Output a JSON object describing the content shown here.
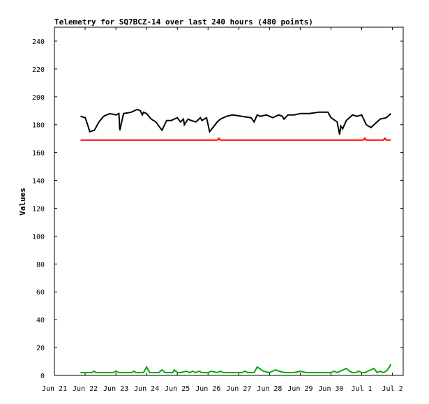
{
  "chart_data": {
    "type": "line",
    "title": "Telemetry for SQ7BCZ-14 over last 240 hours (480 points)",
    "xlabel": "",
    "ylabel": "Values",
    "ylim": [
      0,
      250
    ],
    "y_ticks": [
      0,
      20,
      40,
      60,
      80,
      100,
      120,
      140,
      160,
      180,
      200,
      220,
      240
    ],
    "x_ticks": [
      {
        "day": 0,
        "label": "Jun 21"
      },
      {
        "day": 1,
        "label": "Jun 22"
      },
      {
        "day": 2,
        "label": "Jun 23"
      },
      {
        "day": 3,
        "label": "Jun 24"
      },
      {
        "day": 4,
        "label": "Jun 25"
      },
      {
        "day": 5,
        "label": "Jun 26"
      },
      {
        "day": 6,
        "label": "Jun 27"
      },
      {
        "day": 7,
        "label": "Jun 28"
      },
      {
        "day": 8,
        "label": "Jun 29"
      },
      {
        "day": 9,
        "label": "Jun 30"
      },
      {
        "day": 10,
        "label": "Jul 1"
      },
      {
        "day": 11,
        "label": "Jul 2"
      }
    ],
    "xlim_days": [
      0,
      11.35
    ],
    "grid": false,
    "legend": false,
    "series": [
      {
        "color": "#000000",
        "x": [
          0.85,
          1.0,
          1.08,
          1.15,
          1.3,
          1.45,
          1.6,
          1.8,
          2.0,
          2.1,
          2.13,
          2.25,
          2.5,
          2.7,
          2.8,
          2.86,
          2.9,
          3.0,
          3.15,
          3.3,
          3.5,
          3.65,
          3.8,
          3.9,
          4.0,
          4.1,
          4.2,
          4.23,
          4.35,
          4.45,
          4.6,
          4.75,
          4.8,
          4.95,
          5.05,
          5.3,
          5.4,
          5.6,
          5.8,
          6.1,
          6.4,
          6.5,
          6.6,
          6.7,
          6.9,
          7.1,
          7.3,
          7.42,
          7.47,
          7.6,
          7.8,
          8.0,
          8.3,
          8.6,
          8.9,
          9.0,
          9.2,
          9.28,
          9.32,
          9.38,
          9.5,
          9.7,
          9.85,
          10.0,
          10.15,
          10.3,
          10.5,
          10.6,
          10.8,
          10.95
        ],
        "y": [
          186,
          185,
          180,
          175,
          176,
          182,
          186,
          188,
          187,
          188,
          176,
          188,
          189,
          191,
          190,
          187,
          189,
          188,
          184,
          182,
          176,
          183,
          183,
          184,
          185,
          182,
          184,
          180,
          184,
          183,
          182,
          185,
          183,
          185,
          175,
          182,
          184,
          186,
          187,
          186,
          185,
          182,
          187,
          186,
          187,
          185,
          187,
          186,
          184,
          187,
          187,
          188,
          188,
          189,
          189,
          185,
          182,
          173,
          179,
          177,
          183,
          187,
          186,
          187,
          180,
          178,
          182,
          184,
          185,
          188
        ]
      },
      {
        "color": "#ff0000",
        "x": [
          0.85,
          5.3,
          5.35,
          5.4,
          9.3,
          10.05,
          10.1,
          10.15,
          10.7,
          10.75,
          10.8,
          10.95
        ],
        "y": [
          169,
          169,
          170,
          169,
          169,
          169,
          170,
          169,
          169,
          170,
          169,
          169
        ],
        "dots": [
          [
            5.35,
            170
          ],
          [
            10.1,
            170
          ],
          [
            10.75,
            170
          ]
        ]
      },
      {
        "color": "#00aa00",
        "x": [
          0.85,
          1.2,
          1.3,
          1.35,
          1.9,
          2.0,
          2.1,
          2.5,
          2.6,
          2.65,
          2.9,
          3.0,
          3.1,
          3.4,
          3.5,
          3.6,
          3.85,
          3.9,
          4.0,
          4.1,
          4.3,
          4.4,
          4.5,
          4.6,
          4.7,
          4.8,
          5.0,
          5.1,
          5.3,
          5.4,
          5.5,
          5.6,
          5.7,
          5.9,
          6.1,
          6.2,
          6.3,
          6.5,
          6.6,
          6.8,
          7.0,
          7.2,
          7.3,
          7.5,
          7.8,
          8.0,
          8.2,
          8.5,
          8.7,
          8.9,
          9.0,
          9.1,
          9.2,
          9.3,
          9.4,
          9.5,
          9.6,
          9.7,
          9.8,
          9.9,
          10.0,
          10.1,
          10.2,
          10.3,
          10.4,
          10.5,
          10.6,
          10.7,
          10.8,
          10.9,
          10.95
        ],
        "y": [
          2,
          2,
          3,
          2,
          2,
          3,
          2,
          2,
          3,
          2,
          2,
          6,
          2,
          2,
          4,
          2,
          2,
          4,
          2,
          2,
          3,
          2,
          3,
          2,
          3,
          2,
          2,
          3,
          2,
          3,
          2,
          2,
          2,
          2,
          2,
          3,
          2,
          2,
          6,
          3,
          2,
          4,
          3,
          2,
          2,
          3,
          2,
          2,
          2,
          2,
          2,
          3,
          2,
          3,
          4,
          5,
          3,
          2,
          2,
          3,
          2,
          2,
          3,
          4,
          5,
          2,
          3,
          2,
          3,
          6,
          8
        ]
      }
    ]
  }
}
